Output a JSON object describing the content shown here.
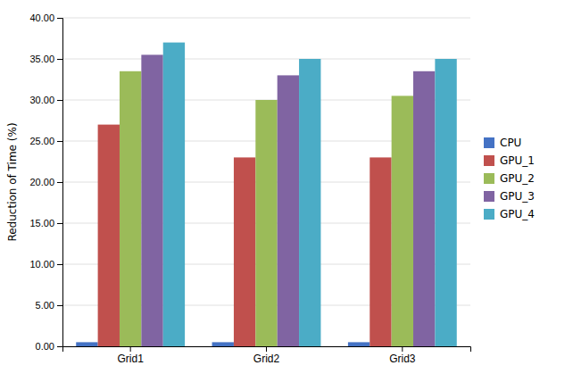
{
  "chart_data": {
    "type": "bar",
    "ylabel": "Reduction of Time (%)",
    "categories": [
      "Grid1",
      "Grid2",
      "Grid3"
    ],
    "series": [
      {
        "name": "CPU",
        "color": "#4472C4",
        "values": [
          0.5,
          0.5,
          0.5
        ]
      },
      {
        "name": "GPU_1",
        "color": "#C0504D",
        "values": [
          27.0,
          23.0,
          23.0
        ]
      },
      {
        "name": "GPU_2",
        "color": "#9BBB59",
        "values": [
          33.5,
          30.0,
          30.5
        ]
      },
      {
        "name": "GPU_3",
        "color": "#8064A2",
        "values": [
          35.5,
          33.0,
          33.5
        ]
      },
      {
        "name": "GPU_4",
        "color": "#4BACC6",
        "values": [
          37.0,
          35.0,
          35.0
        ]
      }
    ],
    "ylim": [
      0,
      40
    ],
    "yticks": [
      {
        "value": 0,
        "label": "0.00"
      },
      {
        "value": 5,
        "label": "5.00"
      },
      {
        "value": 10,
        "label": "10.00"
      },
      {
        "value": 15,
        "label": "15.00"
      },
      {
        "value": 20,
        "label": "20.00"
      },
      {
        "value": 25,
        "label": "25.00"
      },
      {
        "value": 30,
        "label": "30.00"
      },
      {
        "value": 35,
        "label": "35.00"
      },
      {
        "value": 40,
        "label": "40.00"
      }
    ],
    "grid": true,
    "legend": "right"
  }
}
